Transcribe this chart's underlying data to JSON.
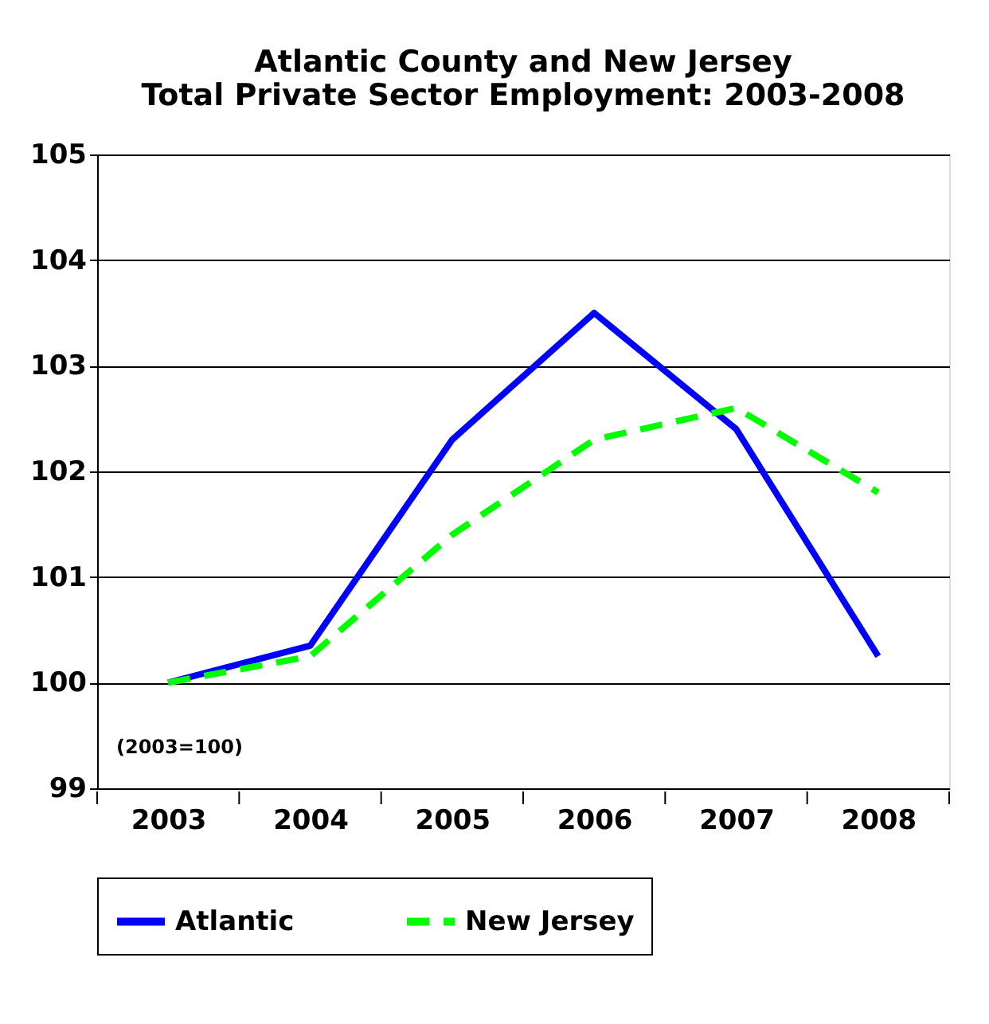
{
  "chart_data": {
    "type": "line",
    "title": [
      "Atlantic County and New Jersey",
      "Total Private Sector Employment: 2003-2008"
    ],
    "categories": [
      "2003",
      "2004",
      "2005",
      "2006",
      "2007",
      "2008"
    ],
    "series": [
      {
        "name": "Atlantic",
        "color": "#0000ff",
        "line_style": "solid",
        "values": [
          100,
          100.35,
          102.3,
          103.5,
          102.4,
          100.25
        ]
      },
      {
        "name": "New Jersey",
        "color": "#00ff00",
        "line_style": "dashed",
        "values": [
          100,
          100.25,
          101.4,
          102.3,
          102.6,
          101.8
        ]
      }
    ],
    "ylim": [
      99,
      105
    ],
    "yticks": [
      99,
      100,
      101,
      102,
      103,
      104,
      105
    ],
    "grid": "y",
    "legend": "bottom",
    "marker": "none",
    "annotations": [
      "(2003=100)"
    ]
  }
}
